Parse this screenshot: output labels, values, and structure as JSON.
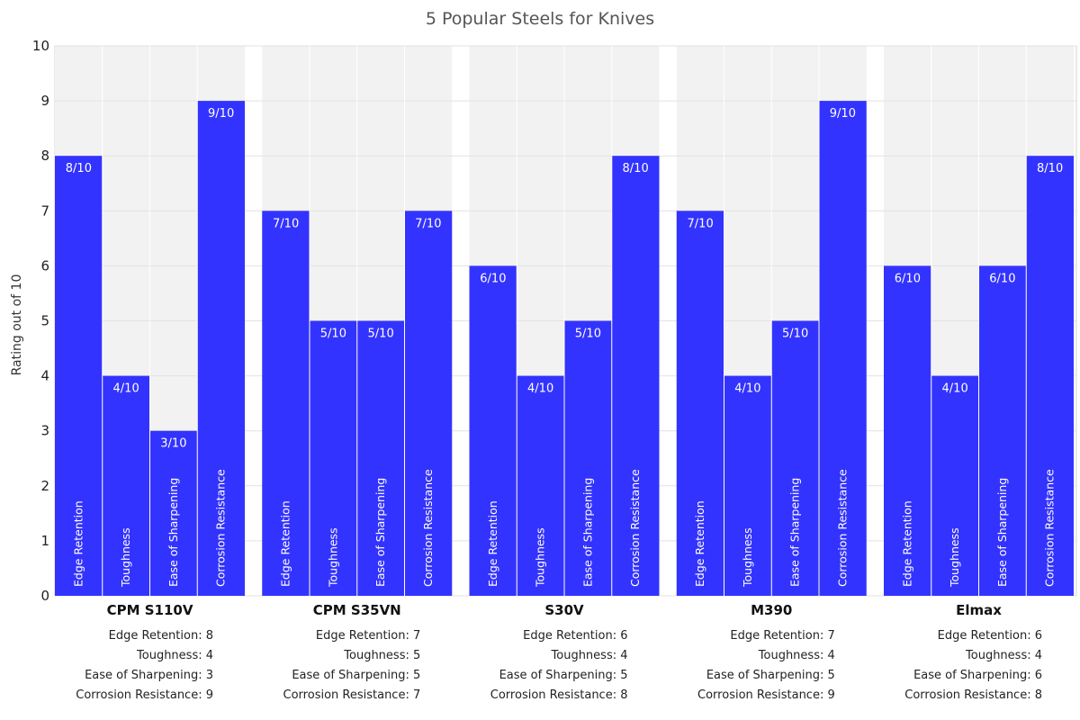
{
  "chart_data": {
    "type": "bar",
    "title": "5 Popular Steels for Knives",
    "ylabel": "Rating out of 10",
    "ylim": [
      0,
      10
    ],
    "yticks": [
      0,
      1,
      2,
      3,
      4,
      5,
      6,
      7,
      8,
      9,
      10
    ],
    "grid": true,
    "categories": [
      "Edge Retention",
      "Toughness",
      "Ease of Sharpening",
      "Corrosion Resistance"
    ],
    "value_label_suffix": "/10",
    "groups": [
      {
        "name": "CPM S110V",
        "values": [
          8,
          4,
          3,
          9
        ],
        "summary": [
          "Edge Retention: 8",
          "Toughness: 4",
          "Ease of Sharpening: 3",
          "Corrosion Resistance: 9"
        ]
      },
      {
        "name": "CPM S35VN",
        "values": [
          7,
          5,
          5,
          7
        ],
        "summary": [
          "Edge Retention: 7",
          "Toughness: 5",
          "Ease of Sharpening: 5",
          "Corrosion Resistance: 7"
        ]
      },
      {
        "name": "S30V",
        "values": [
          6,
          4,
          5,
          8
        ],
        "summary": [
          "Edge Retention: 6",
          "Toughness: 4",
          "Ease of Sharpening: 5",
          "Corrosion Resistance: 8"
        ]
      },
      {
        "name": "M390",
        "values": [
          7,
          4,
          5,
          9
        ],
        "summary": [
          "Edge Retention: 7",
          "Toughness: 4",
          "Ease of Sharpening: 5",
          "Corrosion Resistance: 9"
        ]
      },
      {
        "name": "Elmax",
        "values": [
          6,
          4,
          6,
          8
        ],
        "summary": [
          "Edge Retention: 6",
          "Toughness: 4",
          "Ease of Sharpening: 6",
          "Corrosion Resistance: 8"
        ]
      }
    ],
    "colors": {
      "bar": "#3333ff",
      "plot_background": "#f2f2f2",
      "gridline": "#e2e2e2",
      "bar_text": "#ffffff"
    }
  }
}
